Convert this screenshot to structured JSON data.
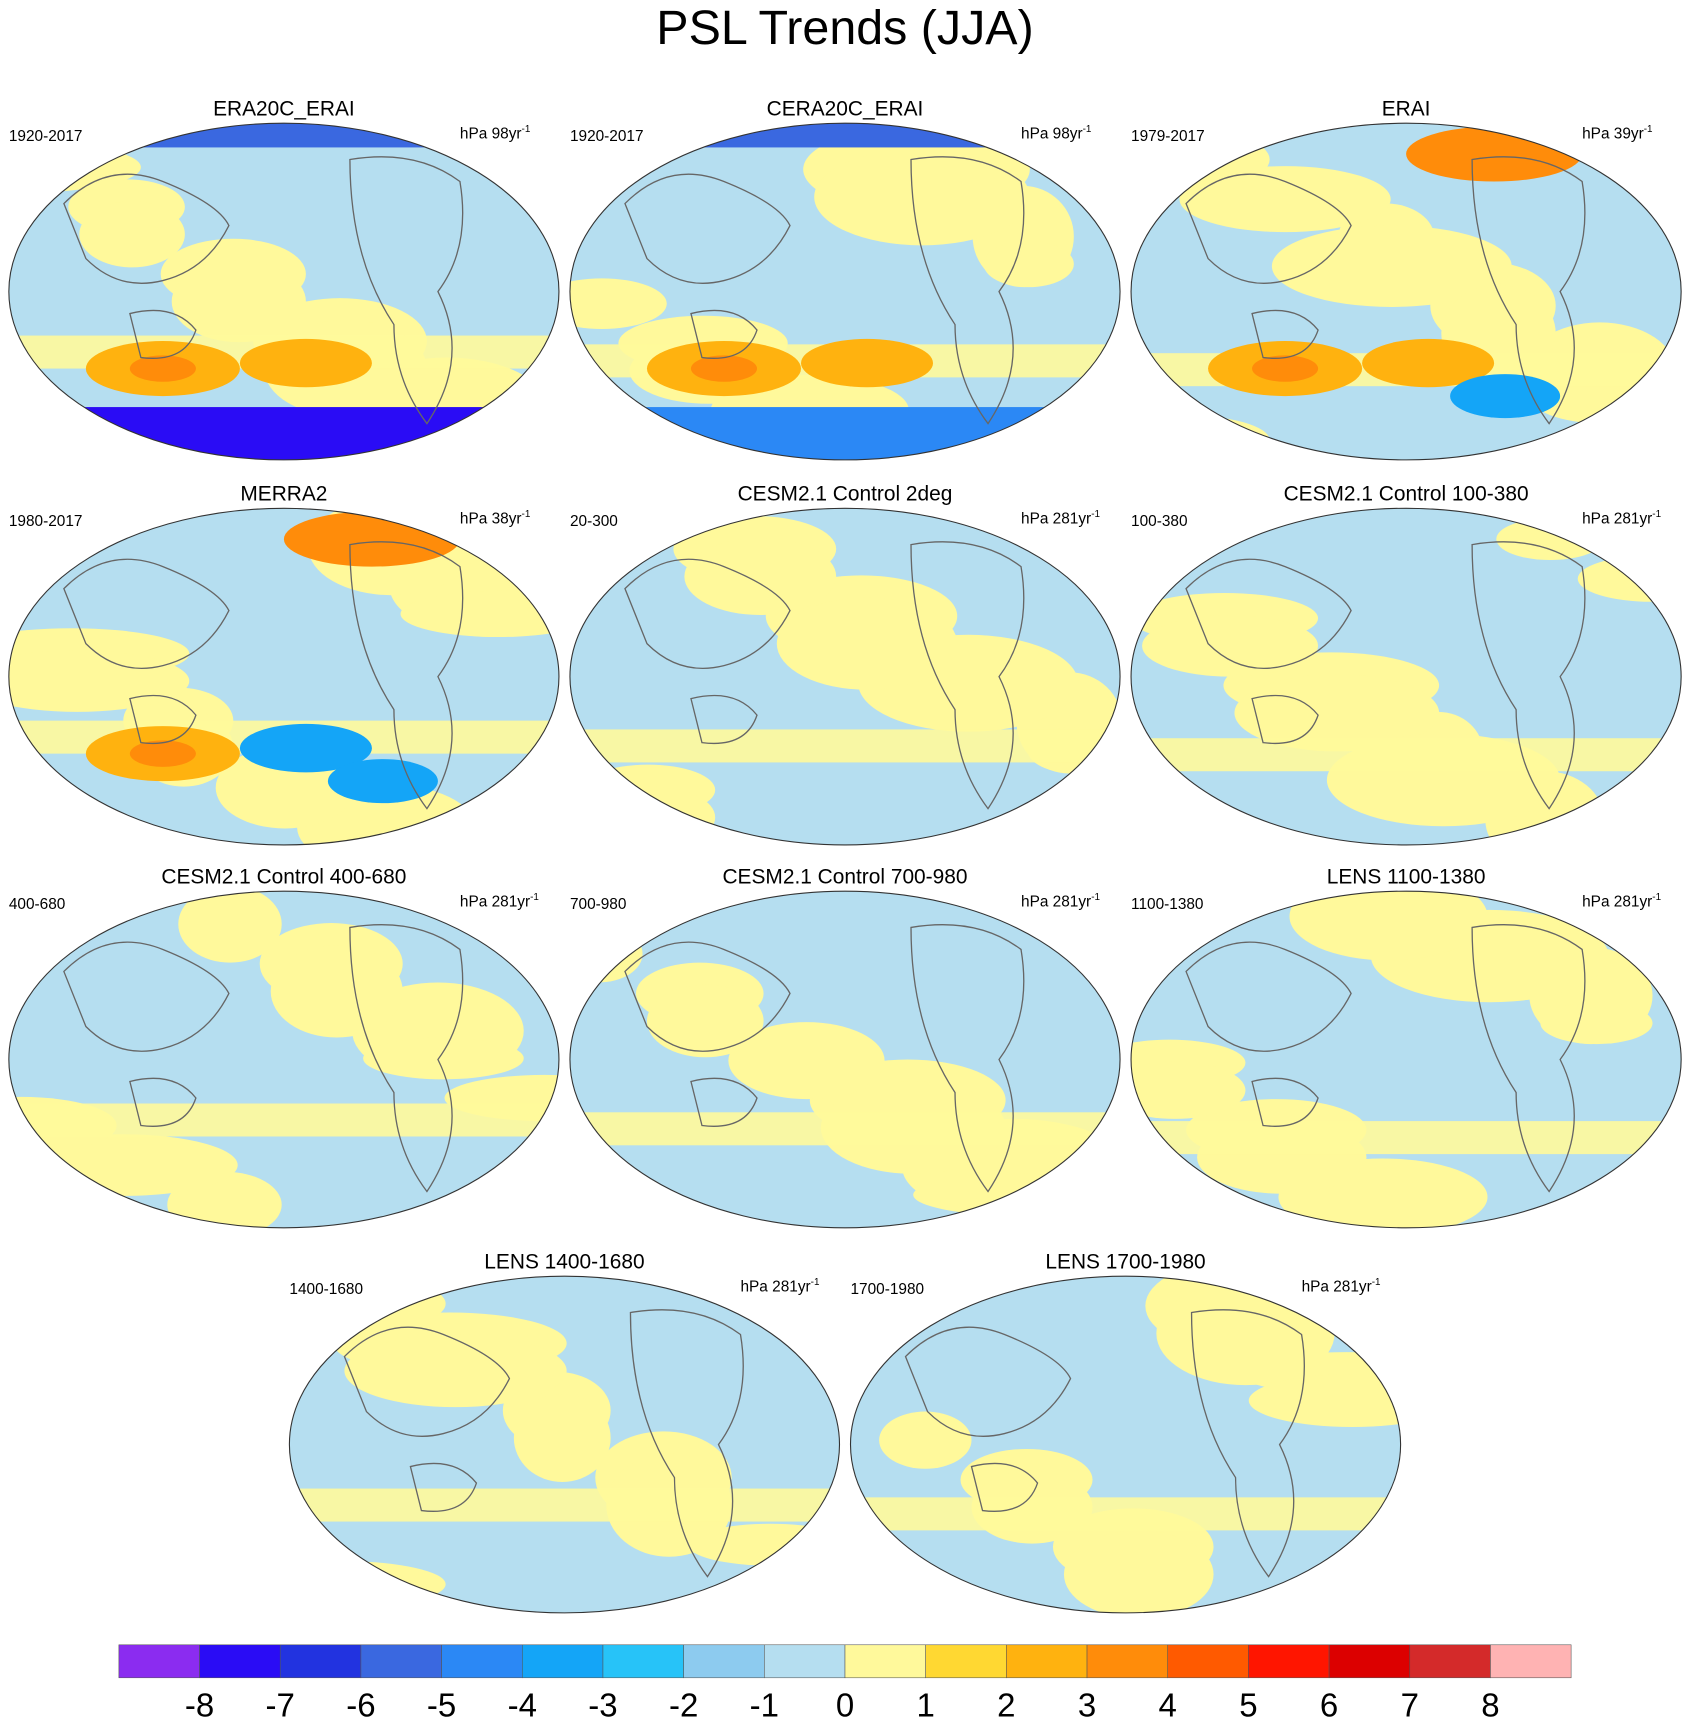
{
  "title": "PSL Trends (JJA)",
  "panels": [
    {
      "title": "ERA20C_ERAI",
      "period": "1920-2017",
      "units": "hPa 98yr",
      "units_exponent": "-1"
    },
    {
      "title": "CERA20C_ERAI",
      "period": "1920-2017",
      "units": "hPa 98yr",
      "units_exponent": "-1"
    },
    {
      "title": "ERAI",
      "period": "1979-2017",
      "units": "hPa 39yr",
      "units_exponent": "-1"
    },
    {
      "title": "MERRA2",
      "period": "1980-2017",
      "units": "hPa 38yr",
      "units_exponent": "-1"
    },
    {
      "title": "CESM2.1 Control 2deg",
      "period": "20-300",
      "units": "hPa 281yr",
      "units_exponent": "-1"
    },
    {
      "title": "CESM2.1 Control 100-380",
      "period": "100-380",
      "units": "hPa 281yr",
      "units_exponent": "-1"
    },
    {
      "title": "CESM2.1 Control 400-680",
      "period": "400-680",
      "units": "hPa 281yr",
      "units_exponent": "-1"
    },
    {
      "title": "CESM2.1 Control 700-980",
      "period": "700-980",
      "units": "hPa 281yr",
      "units_exponent": "-1"
    },
    {
      "title": "LENS 1100-1380",
      "period": "1100-1380",
      "units": "hPa 281yr",
      "units_exponent": "-1"
    },
    {
      "title": "LENS 1400-1680",
      "period": "1400-1680",
      "units": "hPa 281yr",
      "units_exponent": "-1"
    },
    {
      "title": "LENS 1700-1980",
      "period": "1700-1980",
      "units": "hPa 281yr",
      "units_exponent": "-1"
    }
  ],
  "colorbar": {
    "colors": [
      "#8b2cf0",
      "#2a0cf5",
      "#2233e0",
      "#3a68e0",
      "#2b88f5",
      "#14a5f7",
      "#27c3f8",
      "#8dcbef",
      "#b5def0",
      "#fff99b",
      "#ffd832",
      "#ffb20f",
      "#ff8c0a",
      "#ff5a00",
      "#ff1500",
      "#dc0000",
      "#d42a2a",
      "#ffb3b3"
    ],
    "ticks": [
      -8,
      -7,
      -6,
      -5,
      -4,
      -3,
      -2,
      -1,
      0,
      1,
      2,
      3,
      4,
      5,
      6,
      7,
      8
    ]
  }
}
